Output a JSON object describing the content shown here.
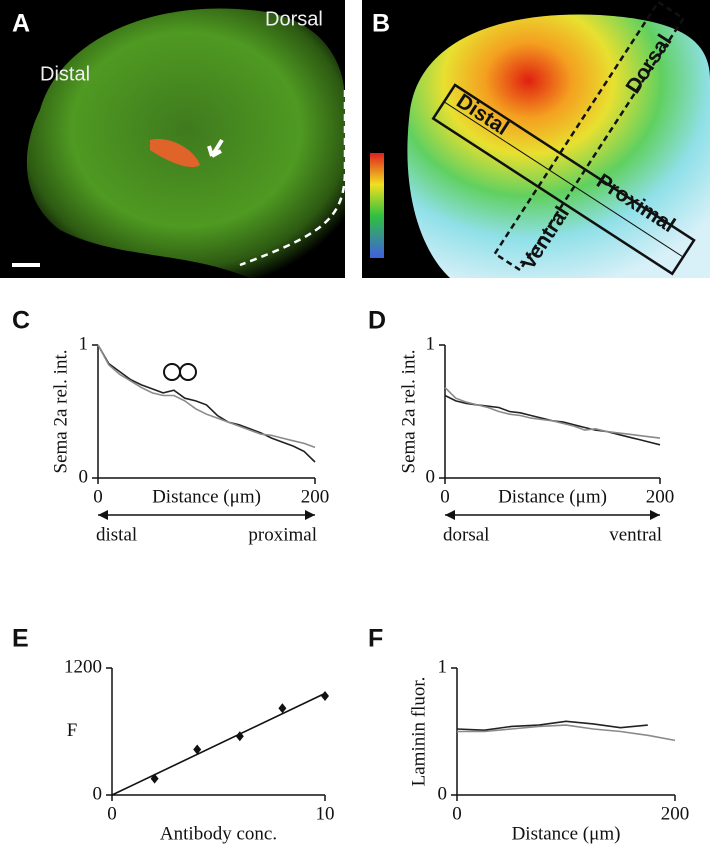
{
  "images": [
    {
      "panel_label": "A",
      "labels": [
        "Dorsal",
        "Distal"
      ]
    },
    {
      "panel_label": "B",
      "labels": [
        "Distal",
        "Proximal",
        "Dorsal",
        "Ventral"
      ]
    }
  ],
  "chart_data": [
    {
      "type": "line",
      "panel_label": "C",
      "y_label": "Sema 2a rel. int.",
      "x_label": "Distance (μm)",
      "arrow_labels": [
        "distal",
        "proximal"
      ],
      "x": [
        0,
        10,
        20,
        30,
        40,
        50,
        60,
        70,
        80,
        90,
        100,
        110,
        120,
        130,
        140,
        150,
        160,
        170,
        180,
        190,
        200
      ],
      "series": [
        {
          "color": "#222222",
          "values": [
            1.0,
            0.86,
            0.8,
            0.74,
            0.7,
            0.67,
            0.64,
            0.66,
            0.6,
            0.58,
            0.55,
            0.47,
            0.42,
            0.4,
            0.37,
            0.34,
            0.3,
            0.27,
            0.24,
            0.2,
            0.12
          ]
        },
        {
          "color": "#8a8a8a",
          "values": [
            1.0,
            0.85,
            0.78,
            0.73,
            0.68,
            0.64,
            0.62,
            0.62,
            0.58,
            0.52,
            0.48,
            0.45,
            0.42,
            0.39,
            0.36,
            0.33,
            0.32,
            0.3,
            0.28,
            0.26,
            0.23
          ]
        }
      ],
      "xlim": [
        0,
        200
      ],
      "xticks": [
        0,
        200
      ],
      "ylim": [
        0,
        1
      ],
      "yticks": [
        0,
        1
      ]
    },
    {
      "type": "line",
      "panel_label": "D",
      "y_label": "Sema 2a rel. int.",
      "x_label": "Distance (μm)",
      "arrow_labels": [
        "dorsal",
        "ventral"
      ],
      "x": [
        0,
        10,
        20,
        30,
        40,
        50,
        60,
        70,
        80,
        90,
        100,
        110,
        120,
        130,
        140,
        150,
        160,
        170,
        180,
        190,
        200
      ],
      "series": [
        {
          "color": "#222222",
          "values": [
            0.62,
            0.58,
            0.56,
            0.55,
            0.54,
            0.53,
            0.5,
            0.49,
            0.47,
            0.45,
            0.43,
            0.42,
            0.4,
            0.38,
            0.36,
            0.35,
            0.33,
            0.31,
            0.29,
            0.27,
            0.25
          ]
        },
        {
          "color": "#8a8a8a",
          "values": [
            0.68,
            0.6,
            0.57,
            0.55,
            0.53,
            0.5,
            0.48,
            0.47,
            0.45,
            0.44,
            0.43,
            0.41,
            0.39,
            0.36,
            0.37,
            0.35,
            0.34,
            0.33,
            0.32,
            0.31,
            0.3
          ]
        }
      ],
      "xlim": [
        0,
        200
      ],
      "xticks": [
        0,
        200
      ],
      "ylim": [
        0,
        1
      ],
      "yticks": [
        0,
        1
      ]
    },
    {
      "type": "scatter",
      "panel_label": "E",
      "y_label": "F",
      "x_label": "Antibody conc.",
      "x": [
        2,
        4,
        6,
        8,
        10
      ],
      "values": [
        155,
        430,
        555,
        820,
        935
      ],
      "color": "#111111",
      "fit": {
        "x": [
          0,
          10
        ],
        "values": [
          0,
          960
        ]
      },
      "xlim": [
        0,
        10
      ],
      "xticks": [
        0,
        10
      ],
      "ylim": [
        0,
        1200
      ],
      "yticks": [
        0,
        1200
      ]
    },
    {
      "type": "line",
      "panel_label": "F",
      "y_label": "Laminin fluor.",
      "x_label": "Distance (μm)",
      "x": [
        0,
        25,
        50,
        75,
        100,
        125,
        150,
        175,
        200
      ],
      "series": [
        {
          "color": "#222222",
          "values": [
            0.52,
            0.51,
            0.54,
            0.55,
            0.58,
            0.56,
            0.53,
            0.55,
            null
          ]
        },
        {
          "color": "#8a8a8a",
          "values": [
            0.5,
            0.5,
            0.52,
            0.54,
            0.55,
            0.52,
            0.5,
            0.47,
            0.43
          ]
        }
      ],
      "xlim": [
        0,
        200
      ],
      "xticks": [
        0,
        200
      ],
      "ylim": [
        0,
        1
      ],
      "yticks": [
        0,
        1
      ]
    }
  ]
}
